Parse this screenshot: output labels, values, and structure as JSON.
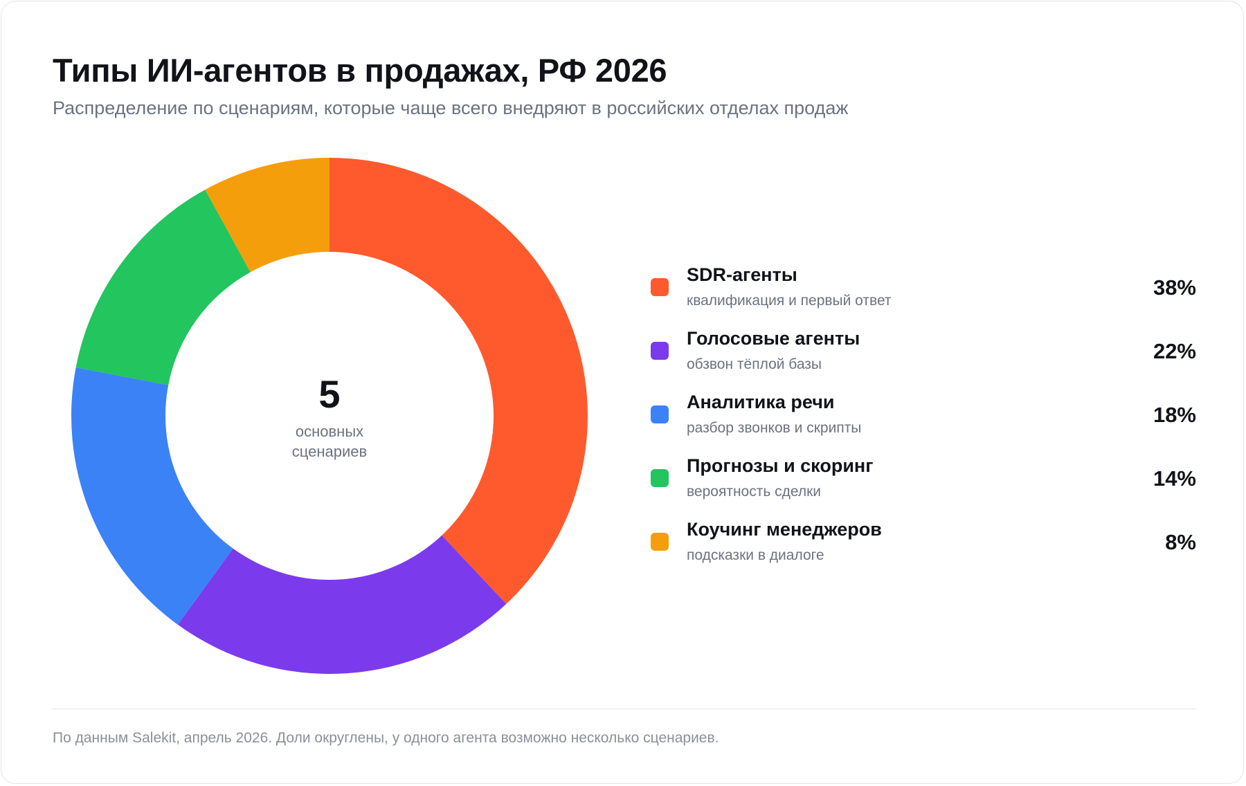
{
  "title": "Типы ИИ-агентов в продажах, РФ 2026",
  "subtitle": "Распределение по сценариям, которые чаще всего внедряют в российских отделах продаж",
  "center": {
    "number": "5",
    "caption_line1": "основных",
    "caption_line2": "сценариев"
  },
  "chart_data": {
    "type": "pie",
    "title": "Типы ИИ-агентов в продажах, РФ 2026",
    "subtitle": "Распределение по сценариям, которые чаще всего внедряют в российских отделах продаж",
    "legend_position": "right",
    "categories": [
      "SDR-агенты",
      "Голосовые агенты",
      "Аналитика речи",
      "Прогнозы и скоринг",
      "Коучинг менеджеров"
    ],
    "values": [
      38,
      22,
      18,
      14,
      8
    ],
    "descriptions": [
      "квалификация и первый ответ",
      "обзвон тёплой базы",
      "разбор звонков и скрипты",
      "вероятность сделки",
      "подсказки в диалоге"
    ],
    "labels": [
      "38%",
      "22%",
      "18%",
      "14%",
      "8%"
    ],
    "colors": [
      "#FF5A2D",
      "#7B3BEC",
      "#3B82F6",
      "#22C55E",
      "#F59E0B"
    ]
  },
  "footer": "По данным Salekit, апрель 2026. Доли округлены, у одного агента возможно несколько сценариев."
}
